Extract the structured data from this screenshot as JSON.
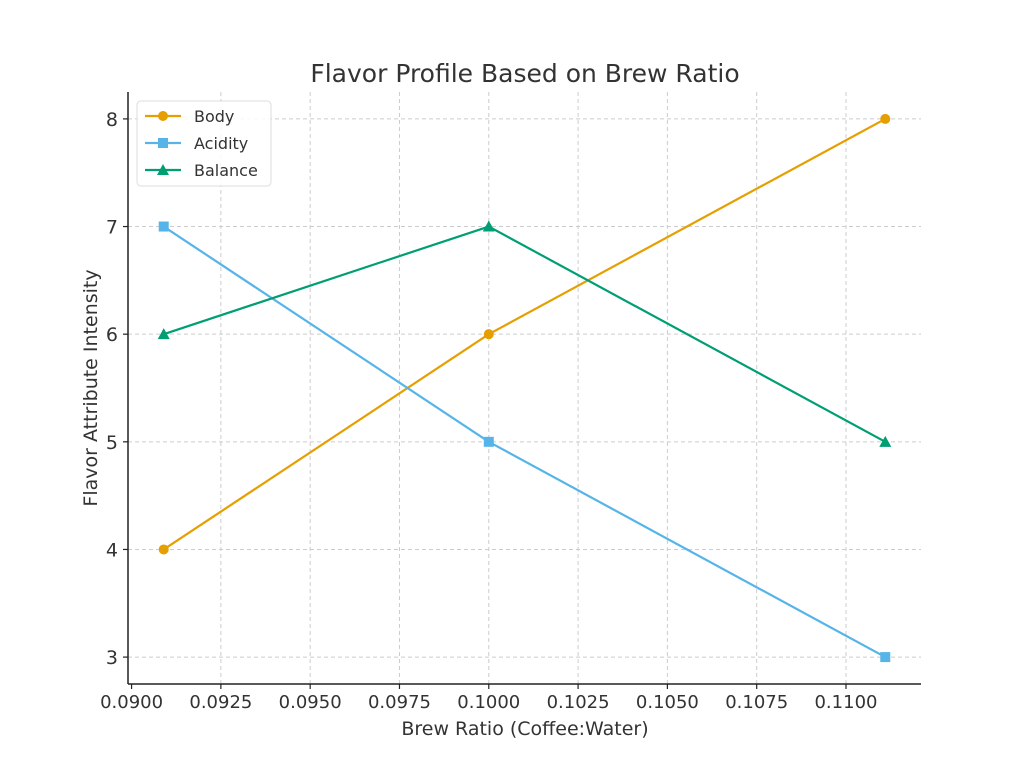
{
  "chart_data": {
    "type": "line",
    "title": "Flavor Profile Based on Brew Ratio",
    "xlabel": "Brew Ratio (Coffee:Water)",
    "ylabel": "Flavor Attribute Intensity",
    "x": [
      0.0909,
      0.1,
      0.1111
    ],
    "xlim": [
      0.0899,
      0.1121
    ],
    "ylim": [
      2.75,
      8.25
    ],
    "xticks": [
      0.09,
      0.0925,
      0.095,
      0.0975,
      0.1,
      0.1025,
      0.105,
      0.1075,
      0.11
    ],
    "xtick_labels": [
      "0.0900",
      "0.0925",
      "0.0950",
      "0.0975",
      "0.1000",
      "0.1025",
      "0.1050",
      "0.1075",
      "0.1100"
    ],
    "yticks": [
      3,
      4,
      5,
      6,
      7,
      8
    ],
    "ytick_labels": [
      "3",
      "4",
      "5",
      "6",
      "7",
      "8"
    ],
    "grid": true,
    "legend_position": "top-left",
    "series": [
      {
        "name": "Body",
        "values": [
          4,
          6,
          8
        ],
        "color": "#E69F00",
        "marker": "circle"
      },
      {
        "name": "Acidity",
        "values": [
          7,
          5,
          3
        ],
        "color": "#56B4E9",
        "marker": "square"
      },
      {
        "name": "Balance",
        "values": [
          6,
          7,
          5
        ],
        "color": "#009E73",
        "marker": "triangle"
      }
    ]
  }
}
